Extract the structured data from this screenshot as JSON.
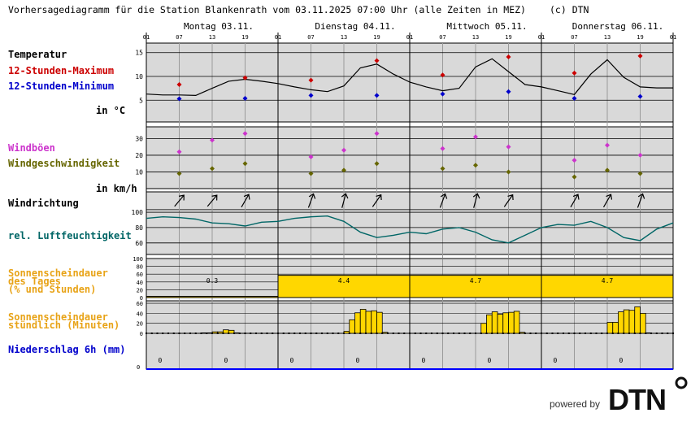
{
  "header": {
    "title": "Vorhersagediagramm für die Station Blankenrath vom 03.11.2025 07:00 Uhr (alle Zeiten in MEZ)",
    "copyright": "(c) DTN"
  },
  "days": [
    "Montag 03.11.",
    "Dienstag 04.11.",
    "Mittwoch 05.11.",
    "Donnerstag 06.11."
  ],
  "hour_labels": [
    "01",
    "07",
    "13",
    "19"
  ],
  "end_hour_label": "01",
  "labels": {
    "temp_title": "Temperatur",
    "temp_max": "12-Stunden-Maximum",
    "temp_min": "12-Stunden-Minimum",
    "temp_unit": "in °C",
    "gust": "Windböen",
    "wind_speed": "Windgeschwindigkeit",
    "wind_unit": "in km/h",
    "wind_dir": "Windrichtung",
    "humidity": "rel. Luftfeuchtigkeit",
    "sun_day_1": "Sonnenscheindauer",
    "sun_day_2": "des Tages",
    "sun_day_3": "(% und Stunden)",
    "sun_hour_1": "Sonnenscheindauer",
    "sun_hour_2": "stündlich (Minuten)",
    "precip": "Niederschlag 6h (mm)"
  },
  "footer": {
    "powered_by": "powered by",
    "logo_text": "DTN"
  },
  "colors": {
    "panel_bg": "#d9d9d9",
    "grid": "#000000",
    "max": "#cc0000",
    "min": "#0000cc",
    "gust": "#cc33cc",
    "wind": "#666600",
    "humidity": "#006666",
    "sun_label": "#e8a317",
    "sun_fill": "#ffd700",
    "precip_label": "#0000cc",
    "blue_bar": "#0000ff"
  },
  "chart_data": [
    {
      "id": "temperature",
      "type": "line",
      "ylim": [
        3,
        17
      ],
      "yticks": [
        5,
        10,
        15
      ],
      "x_unit": "hours since 03.11. 01:00",
      "hourly_x": [
        0,
        3,
        6,
        9,
        12,
        15,
        18,
        21,
        24,
        27,
        30,
        33,
        36,
        39,
        42,
        45,
        48,
        51,
        54,
        57,
        60,
        63,
        66,
        69,
        72,
        75,
        78,
        81,
        84,
        87,
        90,
        93,
        96
      ],
      "hourly_y": [
        6.3,
        6.1,
        6.1,
        6.0,
        7.5,
        9.0,
        9.4,
        9.0,
        8.5,
        7.8,
        7.2,
        6.8,
        8.0,
        11.8,
        12.6,
        10.5,
        8.8,
        7.8,
        7.0,
        7.5,
        12.0,
        13.7,
        11.0,
        8.3,
        7.8,
        7.0,
        6.2,
        10.5,
        13.5,
        9.8,
        7.8,
        7.6,
        7.6
      ],
      "max_points": [
        {
          "x": 6,
          "y": 8.3
        },
        {
          "x": 18,
          "y": 9.7
        },
        {
          "x": 30,
          "y": 9.2
        },
        {
          "x": 42,
          "y": 13.3
        },
        {
          "x": 54,
          "y": 10.3
        },
        {
          "x": 66,
          "y": 14.1
        },
        {
          "x": 78,
          "y": 10.7
        },
        {
          "x": 90,
          "y": 14.3
        }
      ],
      "min_points": [
        {
          "x": 6,
          "y": 5.3
        },
        {
          "x": 18,
          "y": 5.4
        },
        {
          "x": 30,
          "y": 6.0
        },
        {
          "x": 42,
          "y": 6.0
        },
        {
          "x": 54,
          "y": 6.3
        },
        {
          "x": 66,
          "y": 6.8
        },
        {
          "x": 78,
          "y": 5.4
        },
        {
          "x": 90,
          "y": 5.8
        }
      ]
    },
    {
      "id": "wind",
      "type": "scatter",
      "ylim": [
        0,
        37
      ],
      "yticks": [
        10,
        20,
        30
      ],
      "gust_points": [
        {
          "x": 6,
          "y": 22
        },
        {
          "x": 12,
          "y": 29
        },
        {
          "x": 18,
          "y": 33
        },
        {
          "x": 30,
          "y": 19
        },
        {
          "x": 36,
          "y": 23
        },
        {
          "x": 42,
          "y": 33
        },
        {
          "x": 54,
          "y": 24
        },
        {
          "x": 60,
          "y": 31
        },
        {
          "x": 66,
          "y": 25
        },
        {
          "x": 78,
          "y": 17
        },
        {
          "x": 84,
          "y": 26
        },
        {
          "x": 90,
          "y": 20
        }
      ],
      "speed_points": [
        {
          "x": 6,
          "y": 9
        },
        {
          "x": 12,
          "y": 12
        },
        {
          "x": 18,
          "y": 15
        },
        {
          "x": 30,
          "y": 9
        },
        {
          "x": 36,
          "y": 11
        },
        {
          "x": 42,
          "y": 15
        },
        {
          "x": 54,
          "y": 12
        },
        {
          "x": 60,
          "y": 14
        },
        {
          "x": 66,
          "y": 10
        },
        {
          "x": 78,
          "y": 7
        },
        {
          "x": 84,
          "y": 11
        },
        {
          "x": 90,
          "y": 9
        }
      ]
    },
    {
      "id": "wind_direction",
      "type": "scatter",
      "direction_labels_shown": false,
      "arrow_rotation_deg": [
        40,
        40,
        30,
        20,
        15,
        35,
        20,
        15,
        35,
        30,
        30,
        20
      ],
      "x": [
        6,
        12,
        18,
        30,
        36,
        42,
        54,
        60,
        66,
        78,
        84,
        90
      ]
    },
    {
      "id": "humidity",
      "type": "line",
      "ylim": [
        45,
        100
      ],
      "yticks": [
        60,
        80,
        100
      ],
      "x": [
        0,
        3,
        6,
        9,
        12,
        15,
        18,
        21,
        24,
        27,
        30,
        33,
        36,
        39,
        42,
        45,
        48,
        51,
        54,
        57,
        60,
        63,
        66,
        69,
        72,
        75,
        78,
        81,
        84,
        87,
        90,
        93,
        96
      ],
      "y": [
        92,
        94,
        93,
        91,
        86,
        85,
        82,
        87,
        88,
        92,
        94,
        95,
        88,
        74,
        67,
        70,
        74,
        72,
        78,
        80,
        74,
        64,
        60,
        70,
        80,
        84,
        83,
        88,
        80,
        67,
        63,
        78,
        86
      ]
    },
    {
      "id": "sunshine_daily",
      "type": "bar",
      "ylim": [
        0,
        100
      ],
      "yticks": [
        0,
        20,
        40,
        60,
        80,
        100
      ],
      "categories": [
        "03.11.",
        "04.11.",
        "05.11.",
        "06.11."
      ],
      "percent": [
        3,
        57,
        57,
        57
      ],
      "hours": [
        "0.3",
        "4.4",
        "4.7",
        "4.7"
      ]
    },
    {
      "id": "sunshine_hourly",
      "type": "bar",
      "ylim": [
        0,
        65
      ],
      "yticks": [
        0,
        20,
        40,
        60
      ],
      "unit": "Minuten",
      "x": [
        10,
        11,
        12,
        13,
        14,
        15,
        16,
        36,
        37,
        38,
        39,
        40,
        41,
        42,
        43,
        61,
        62,
        63,
        64,
        65,
        66,
        67,
        68,
        84,
        85,
        86,
        87,
        88,
        89,
        90,
        91
      ],
      "y": [
        1,
        1,
        3,
        3,
        7,
        6,
        1,
        4,
        27,
        41,
        48,
        44,
        45,
        42,
        2,
        20,
        37,
        43,
        38,
        41,
        42,
        44,
        2,
        22,
        22,
        43,
        47,
        46,
        53,
        40,
        1
      ]
    },
    {
      "id": "precipitation",
      "type": "bar",
      "unit": "mm",
      "x": [
        6,
        18,
        30,
        42,
        54,
        66,
        78,
        90
      ],
      "values": [
        0,
        0,
        0,
        0,
        0,
        0,
        0,
        0
      ],
      "value_labels": [
        "0",
        "0",
        "0",
        "0",
        "0",
        "0",
        "0",
        "0"
      ]
    }
  ]
}
